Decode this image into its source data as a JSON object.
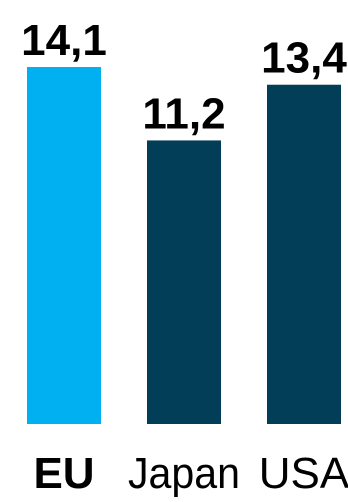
{
  "chart_data": {
    "type": "bar",
    "title": "",
    "xlabel": "",
    "ylabel": "",
    "categories": [
      "EU",
      "Japan",
      "USA"
    ],
    "values": [
      14.1,
      11.2,
      13.4
    ],
    "value_labels": [
      "14,1",
      "11,2",
      "13,4"
    ],
    "ylim": [
      0,
      14.1
    ],
    "grid": false,
    "highlight_category": "EU",
    "colors": {
      "highlight": "#00b0f0",
      "default": "#023e58"
    }
  }
}
